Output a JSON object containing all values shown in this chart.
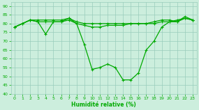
{
  "xlabel": "Humidité relative (%)",
  "xlim": [
    -0.5,
    23.5
  ],
  "ylim": [
    40,
    92
  ],
  "yticks": [
    40,
    45,
    50,
    55,
    60,
    65,
    70,
    75,
    80,
    85,
    90
  ],
  "xticks": [
    0,
    1,
    2,
    3,
    4,
    5,
    6,
    7,
    8,
    9,
    10,
    11,
    12,
    13,
    14,
    15,
    16,
    17,
    18,
    19,
    20,
    21,
    22,
    23
  ],
  "bg_color": "#cceedd",
  "grid_color": "#99ccbb",
  "line_color": "#00aa00",
  "series1_x": [
    0,
    1,
    2,
    3,
    4,
    5,
    6,
    7,
    8,
    9,
    10,
    11,
    12,
    13,
    14,
    15,
    16,
    17,
    18,
    19,
    20,
    21,
    22,
    23
  ],
  "series1_y": [
    78,
    80,
    82,
    81,
    74,
    81,
    81,
    83,
    80,
    68,
    54,
    55,
    57,
    55,
    48,
    48,
    52,
    65,
    70,
    78,
    81,
    82,
    83,
    82
  ],
  "series2_x": [
    0,
    2,
    3,
    4,
    5,
    6,
    7,
    8,
    9,
    10,
    11,
    12,
    13,
    14,
    15,
    16,
    17,
    18,
    19,
    20,
    21,
    22,
    23
  ],
  "series2_y": [
    78,
    82,
    82,
    82,
    82,
    82,
    83,
    81,
    80,
    80,
    80,
    80,
    80,
    80,
    80,
    80,
    80,
    81,
    82,
    82,
    81,
    84,
    82
  ],
  "series3_x": [
    0,
    1,
    2,
    3,
    4,
    5,
    6,
    7,
    8,
    9,
    10,
    11,
    12,
    13,
    14,
    15,
    16,
    17,
    18,
    19,
    20,
    21,
    22,
    23
  ],
  "series3_y": [
    78,
    80,
    82,
    81,
    81,
    81,
    81,
    82,
    80,
    79,
    78,
    78,
    79,
    79,
    79,
    80,
    80,
    80,
    80,
    81,
    81,
    81,
    83,
    82
  ]
}
